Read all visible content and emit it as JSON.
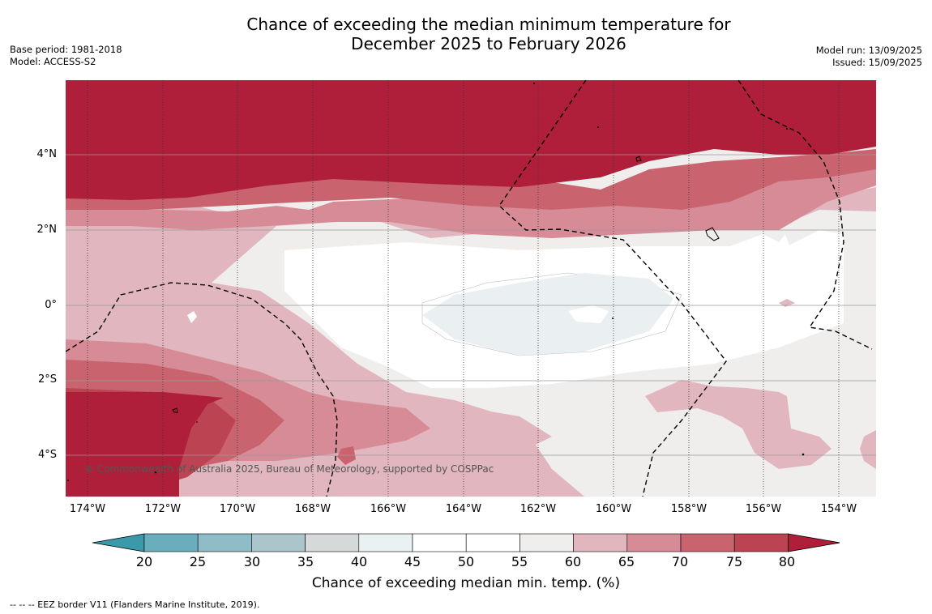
{
  "title_line1": "Chance of exceeding the median minimum temperature for",
  "title_line2": "December 2025 to February 2026",
  "meta_left": {
    "base_period": "Base period: 1981-2018",
    "model": "Model: ACCESS-S2"
  },
  "meta_right": {
    "model_run": "Model run: 13/09/2025",
    "issued": "Issued: 15/09/2025"
  },
  "copyright": "© Commonwealth of Australia 2025, Bureau of Meteorology, supported by COSPPac",
  "lat_labels": [
    "4°N",
    "2°N",
    "0°",
    "2°S",
    "4°S"
  ],
  "lon_labels": [
    "174°W",
    "172°W",
    "170°W",
    "168°W",
    "166°W",
    "164°W",
    "162°W",
    "160°W",
    "158°W",
    "156°W",
    "154°W"
  ],
  "colorbar": {
    "ticks": [
      "20",
      "25",
      "30",
      "35",
      "40",
      "45",
      "50",
      "55",
      "60",
      "65",
      "70",
      "75",
      "80"
    ],
    "colors": [
      "#3a9aaa",
      "#6aaebe",
      "#8ebdc8",
      "#aac6cc",
      "#d6d9d9",
      "#eaf1f2",
      "#ffffff",
      "#ffffff",
      "#efeeed",
      "#e1b6be",
      "#d68b96",
      "#c9646f",
      "#bc4452",
      "#b01f3a"
    ],
    "label": "Chance of exceeding median min. temp. (%)"
  },
  "legend_note": "--  --  -- EEZ border V11 (Flanders Marine Institute, 2019)."
}
